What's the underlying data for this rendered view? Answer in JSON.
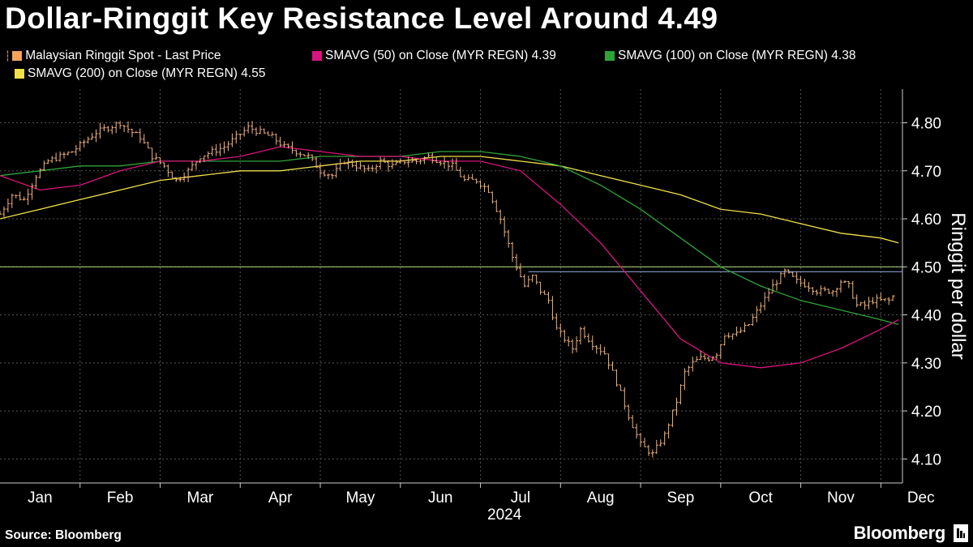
{
  "title": "Dollar-Ringgit Key Resistance Level Around 4.49",
  "legend": {
    "spot": "Malaysian Ringgit Spot - Last Price",
    "sma50": "SMAVG (50)  on Close (MYR REGN) 4.39",
    "sma100": "SMAVG (100)  on Close (MYR REGN) 4.38",
    "sma200": "SMAVG (200)  on Close (MYR REGN) 4.55"
  },
  "source": "Source: Bloomberg",
  "brand": "Bloomberg",
  "colors": {
    "spot": "#f5b27a",
    "sma50": "#d9147d",
    "sma100": "#2fa33a",
    "sma200": "#f0e04b",
    "resistance_green": "#b9e07a",
    "resistance_blue": "#9ab3e8",
    "grid": "#555555"
  },
  "chart_data": {
    "type": "line",
    "title": "Dollar-Ringgit Key Resistance Level Around 4.49",
    "ylabel": "Ringgit per dollar",
    "xlabel": "2024",
    "ylim": [
      4.05,
      4.87
    ],
    "yticks": [
      4.1,
      4.2,
      4.3,
      4.4,
      4.5,
      4.6,
      4.7,
      4.8
    ],
    "ytick_labels": [
      "4.10",
      "4.20",
      "4.30",
      "4.40",
      "4.50",
      "4.60",
      "4.70",
      "4.80"
    ],
    "months": [
      "Jan",
      "Feb",
      "Mar",
      "Apr",
      "May",
      "Jun",
      "Jul",
      "Aug",
      "Sep",
      "Oct",
      "Nov",
      "Dec"
    ],
    "year_label": "2024",
    "x_domain": [
      0,
      11.27
    ],
    "month_boundaries": [
      1,
      2,
      3,
      4,
      5,
      6,
      7,
      8,
      9,
      10,
      11
    ],
    "grid": true,
    "resistance_levels": [
      4.5,
      4.49
    ],
    "series": [
      {
        "name": "Malaysian Ringgit Spot - Last Price",
        "style": "ohlc",
        "x": [
          0.0,
          0.15,
          0.3,
          0.45,
          0.6,
          0.75,
          0.9,
          1.05,
          1.2,
          1.35,
          1.5,
          1.65,
          1.75,
          1.9,
          2.05,
          2.2,
          2.35,
          2.5,
          2.65,
          2.8,
          2.95,
          3.1,
          3.25,
          3.4,
          3.55,
          3.7,
          3.85,
          4.0,
          4.15,
          4.3,
          4.45,
          4.6,
          4.75,
          4.9,
          5.05,
          5.2,
          5.35,
          5.5,
          5.65,
          5.8,
          5.95,
          6.1,
          6.25,
          6.4,
          6.55,
          6.65,
          6.75,
          6.85,
          6.95,
          7.05,
          7.15,
          7.25,
          7.4,
          7.55,
          7.7,
          7.85,
          8.0,
          8.15,
          8.3,
          8.45,
          8.55,
          8.65,
          8.75,
          8.85,
          8.95,
          9.05,
          9.2,
          9.35,
          9.5,
          9.65,
          9.8,
          9.95,
          10.1,
          10.2,
          10.3,
          10.4,
          10.5,
          10.6,
          10.7,
          10.8,
          10.9,
          11.0,
          11.1,
          11.17
        ],
        "values": [
          4.61,
          4.65,
          4.64,
          4.69,
          4.72,
          4.73,
          4.74,
          4.76,
          4.78,
          4.79,
          4.8,
          4.78,
          4.77,
          4.73,
          4.71,
          4.68,
          4.7,
          4.73,
          4.74,
          4.75,
          4.77,
          4.79,
          4.78,
          4.77,
          4.75,
          4.74,
          4.73,
          4.7,
          4.69,
          4.72,
          4.71,
          4.7,
          4.72,
          4.71,
          4.72,
          4.72,
          4.73,
          4.72,
          4.71,
          4.68,
          4.68,
          4.66,
          4.6,
          4.52,
          4.46,
          4.48,
          4.45,
          4.43,
          4.37,
          4.35,
          4.33,
          4.37,
          4.34,
          4.32,
          4.26,
          4.19,
          4.13,
          4.11,
          4.15,
          4.22,
          4.28,
          4.3,
          4.31,
          4.31,
          4.32,
          4.36,
          4.36,
          4.38,
          4.42,
          4.46,
          4.49,
          4.47,
          4.46,
          4.45,
          4.45,
          4.45,
          4.47,
          4.46,
          4.42,
          4.42,
          4.43,
          4.43,
          4.43,
          4.44
        ]
      },
      {
        "name": "SMAVG (50) on Close (MYR REGN)",
        "style": "line",
        "x": [
          0.0,
          0.5,
          1.0,
          1.5,
          2.0,
          2.5,
          3.0,
          3.5,
          4.0,
          4.5,
          5.0,
          5.5,
          6.0,
          6.5,
          7.0,
          7.5,
          8.0,
          8.5,
          9.0,
          9.5,
          10.0,
          10.5,
          11.0,
          11.22
        ],
        "values": [
          4.69,
          4.66,
          4.67,
          4.7,
          4.72,
          4.72,
          4.73,
          4.75,
          4.74,
          4.73,
          4.73,
          4.72,
          4.72,
          4.7,
          4.63,
          4.55,
          4.45,
          4.35,
          4.3,
          4.29,
          4.3,
          4.33,
          4.37,
          4.39
        ]
      },
      {
        "name": "SMAVG (100) on Close (MYR REGN)",
        "style": "line",
        "x": [
          0.0,
          0.5,
          1.0,
          1.5,
          2.0,
          2.5,
          3.0,
          3.5,
          4.0,
          4.5,
          5.0,
          5.5,
          6.0,
          6.5,
          7.0,
          7.5,
          8.0,
          8.5,
          9.0,
          9.5,
          10.0,
          10.5,
          11.0,
          11.22
        ],
        "values": [
          4.69,
          4.7,
          4.71,
          4.71,
          4.72,
          4.72,
          4.72,
          4.72,
          4.73,
          4.73,
          4.73,
          4.74,
          4.74,
          4.73,
          4.71,
          4.67,
          4.62,
          4.56,
          4.5,
          4.46,
          4.43,
          4.41,
          4.39,
          4.38
        ]
      },
      {
        "name": "SMAVG (200) on Close (MYR REGN)",
        "style": "line",
        "x": [
          0.0,
          0.5,
          1.0,
          1.5,
          2.0,
          2.5,
          3.0,
          3.5,
          4.0,
          4.5,
          5.0,
          5.5,
          6.0,
          6.5,
          7.0,
          7.5,
          8.0,
          8.5,
          9.0,
          9.5,
          10.0,
          10.5,
          11.0,
          11.22
        ],
        "values": [
          4.6,
          4.62,
          4.64,
          4.66,
          4.68,
          4.69,
          4.7,
          4.7,
          4.71,
          4.72,
          4.72,
          4.73,
          4.73,
          4.72,
          4.71,
          4.69,
          4.67,
          4.65,
          4.62,
          4.61,
          4.59,
          4.57,
          4.56,
          4.55
        ]
      }
    ]
  }
}
